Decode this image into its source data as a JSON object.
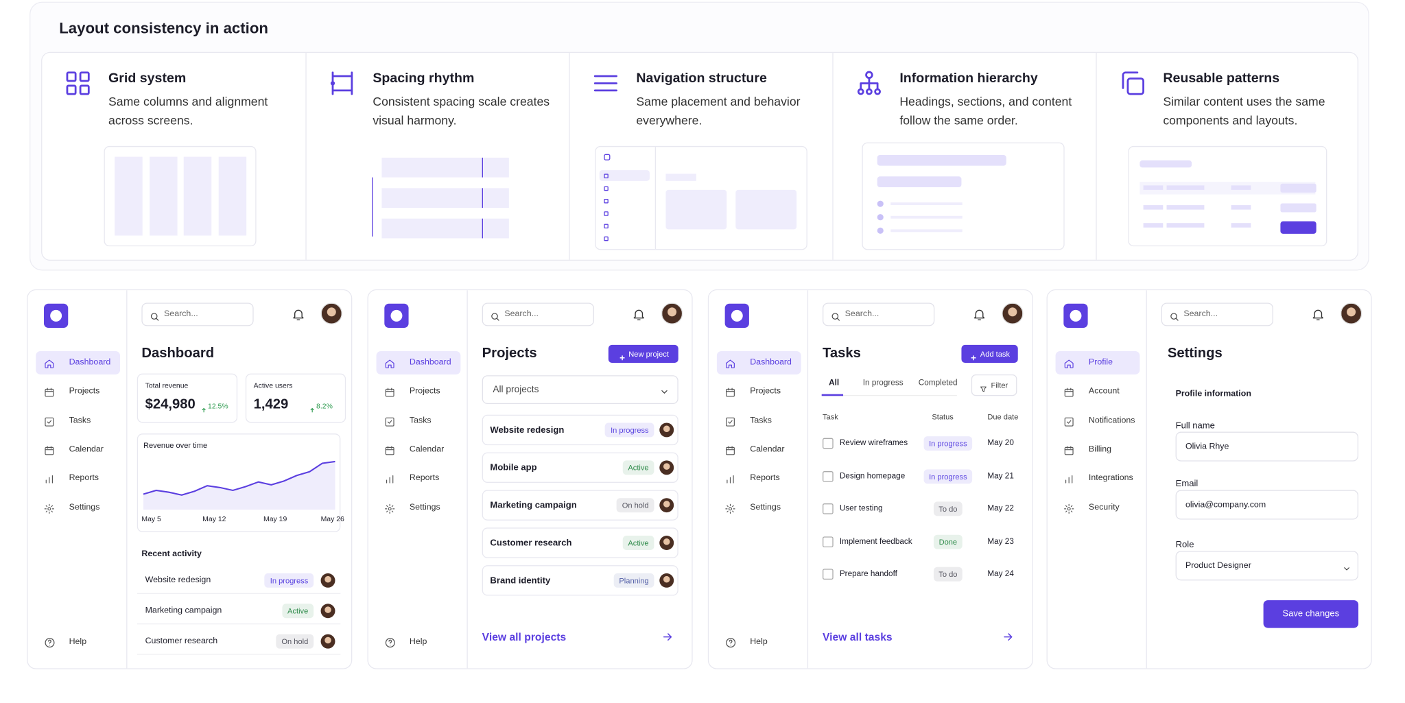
{
  "header": {
    "title": "Layout consistency in action"
  },
  "principles": [
    {
      "title": "Grid system",
      "description": "Same columns and alignment across screens."
    },
    {
      "title": "Spacing rhythm",
      "description": "Consistent spacing scale creates visual harmony."
    },
    {
      "title": "Navigation structure",
      "description": "Same placement and behavior everywhere."
    },
    {
      "title": "Information hierarchy",
      "description": "Headings, sections, and content follow the same order."
    },
    {
      "title": "Reusable patterns",
      "description": "Similar content uses the same components and layouts."
    }
  ],
  "screens": [
    {
      "search": "Search...",
      "nav": [
        "Dashboard",
        "Projects",
        "Tasks",
        "Calendar",
        "Reports",
        "Settings"
      ],
      "help": "Help",
      "title": "Dashboard",
      "stats": [
        {
          "label": "Total revenue",
          "value": "$24,980",
          "change": "12.5%"
        },
        {
          "label": "Active users",
          "value": "1,429",
          "change": "8.2%"
        }
      ],
      "revenue_chart": {
        "title": "Revenue over time",
        "x_labels": [
          "May 5",
          "May 12",
          "May 19",
          "May 26"
        ],
        "values": [
          22,
          30,
          26,
          20,
          28,
          40,
          36,
          30,
          38,
          48,
          42,
          50,
          62,
          70,
          88,
          92
        ]
      },
      "recent_activity": {
        "title": "Recent activity",
        "items": [
          {
            "name": "Website redesign",
            "status": "In progress",
            "status_color": "#5b45e0"
          },
          {
            "name": "Marketing campaign",
            "status": "Active",
            "status_color": "#2e8b4a"
          },
          {
            "name": "Customer research",
            "status": "On hold",
            "status_color": "#555560"
          }
        ]
      }
    },
    {
      "search": "Search...",
      "nav": [
        "Dashboard",
        "Projects",
        "Tasks",
        "Calendar",
        "Reports",
        "Settings"
      ],
      "help": "Help",
      "title": "Projects",
      "button": "New project",
      "filter": "All projects",
      "items": [
        {
          "name": "Website redesign",
          "status": "In progress",
          "status_color": "#5b45e0"
        },
        {
          "name": "Mobile app",
          "status": "Active",
          "status_color": "#2e8b4a"
        },
        {
          "name": "Marketing campaign",
          "status": "On hold",
          "status_color": "#555560"
        },
        {
          "name": "Customer research",
          "status": "Active",
          "status_color": "#2e8b4a"
        },
        {
          "name": "Brand identity",
          "status": "Planning",
          "status_color": "#5561a8"
        }
      ],
      "link": "View all projects"
    },
    {
      "search": "Search...",
      "nav": [
        "Dashboard",
        "Projects",
        "Tasks",
        "Calendar",
        "Reports",
        "Settings"
      ],
      "help": "Help",
      "title": "Tasks",
      "button": "Add task",
      "tabs": [
        "All",
        "In progress",
        "Completed"
      ],
      "filter": "Filter",
      "columns": [
        "Task",
        "Status",
        "Due date"
      ],
      "rows": [
        {
          "task": "Review wireframes",
          "status": "In progress",
          "status_color": "#5b45e0",
          "due": "May 20"
        },
        {
          "task": "Design homepage",
          "status": "In progress",
          "status_color": "#5b45e0",
          "due": "May 21"
        },
        {
          "task": "User testing",
          "status": "To do",
          "status_color": "#555560",
          "due": "May 22"
        },
        {
          "task": "Implement feedback",
          "status": "Done",
          "status_color": "#2e8b4a",
          "due": "May 23"
        },
        {
          "task": "Prepare handoff",
          "status": "To do",
          "status_color": "#555560",
          "due": "May 24"
        }
      ],
      "link": "View all tasks"
    },
    {
      "search": "Search...",
      "nav": [
        "Profile",
        "Account",
        "Notifications",
        "Billing",
        "Integrations",
        "Security"
      ],
      "title": "Settings",
      "section": "Profile information",
      "fields": [
        {
          "label": "Full name",
          "value": "Olivia Rhye"
        },
        {
          "label": "Email",
          "value": "olivia@company.com"
        },
        {
          "label": "Role",
          "value": "Product Designer"
        }
      ],
      "button": "Save changes"
    }
  ]
}
